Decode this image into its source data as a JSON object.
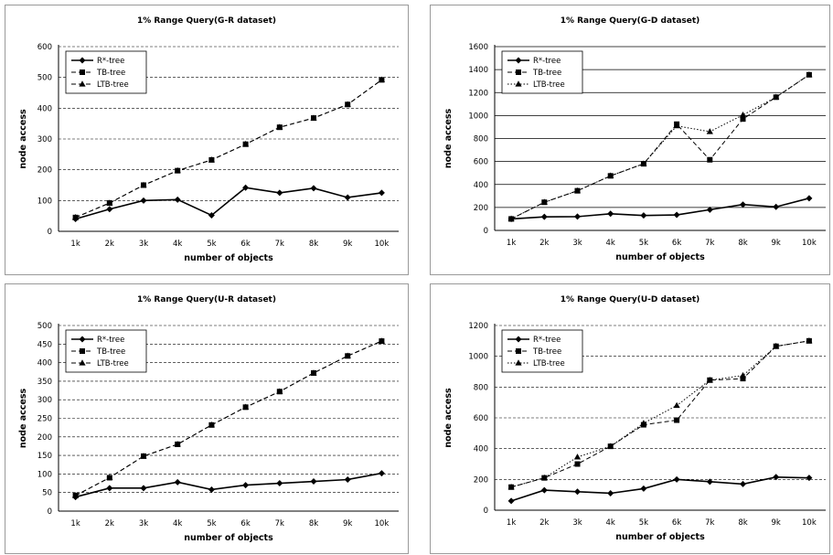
{
  "charts": [
    {
      "type": "line",
      "title": "1% Range Query(G-R dataset)",
      "xlabel": "number of objects",
      "ylabel": "node access",
      "categories": [
        "1k",
        "2k",
        "3k",
        "4k",
        "5k",
        "6k",
        "7k",
        "8k",
        "9k",
        "10k"
      ],
      "ylim": [
        0,
        600
      ],
      "yticks": [
        0,
        100,
        200,
        300,
        400,
        500,
        600
      ],
      "grid": "dashed",
      "legend_position": "top-left",
      "series": [
        {
          "name": "R*-tree",
          "marker": "diamond",
          "dash": "solid",
          "values": [
            40,
            72,
            100,
            103,
            52,
            142,
            125,
            140,
            110,
            125
          ]
        },
        {
          "name": "TB-tree",
          "marker": "square",
          "dash": "dashed",
          "values": [
            45,
            92,
            150,
            197,
            232,
            283,
            338,
            368,
            412,
            492
          ]
        },
        {
          "name": "LTB-tree",
          "marker": "triangle",
          "dash": "dashed",
          "values": [
            45,
            92,
            150,
            197,
            232,
            283,
            338,
            368,
            412,
            492
          ]
        }
      ]
    },
    {
      "type": "line",
      "title": "1% Range Query(G-D dataset)",
      "xlabel": "number of objects",
      "ylabel": "node access",
      "categories": [
        "1k",
        "2k",
        "3k",
        "4k",
        "5k",
        "6k",
        "7k",
        "8k",
        "9k",
        "10k"
      ],
      "ylim": [
        0,
        1600
      ],
      "yticks": [
        0,
        200,
        400,
        600,
        800,
        1000,
        1200,
        1400,
        1600
      ],
      "grid": "solid",
      "legend_position": "top-left",
      "series": [
        {
          "name": "R*-tree",
          "marker": "diamond",
          "dash": "solid",
          "values": [
            100,
            118,
            120,
            145,
            130,
            135,
            180,
            225,
            205,
            280
          ]
        },
        {
          "name": "TB-tree",
          "marker": "square",
          "dash": "dashed",
          "values": [
            100,
            245,
            345,
            475,
            580,
            925,
            615,
            970,
            1160,
            1355
          ]
        },
        {
          "name": "LTB-tree",
          "marker": "triangle",
          "dash": "dotted",
          "values": [
            100,
            245,
            345,
            475,
            580,
            910,
            860,
            1005,
            1160,
            1355
          ]
        }
      ]
    },
    {
      "type": "line",
      "title": "1% Range Query(U-R dataset)",
      "xlabel": "number of objects",
      "ylabel": "node access",
      "categories": [
        "1k",
        "2k",
        "3k",
        "4k",
        "5k",
        "6k",
        "7k",
        "8k",
        "9k",
        "10k"
      ],
      "ylim": [
        0,
        500
      ],
      "yticks": [
        0,
        50,
        100,
        150,
        200,
        250,
        300,
        350,
        400,
        450,
        500
      ],
      "grid": "dashed",
      "legend_position": "top-left",
      "series": [
        {
          "name": "R*-tree",
          "marker": "diamond",
          "dash": "solid",
          "values": [
            38,
            62,
            62,
            78,
            58,
            70,
            75,
            80,
            85,
            102
          ]
        },
        {
          "name": "TB-tree",
          "marker": "square",
          "dash": "dashed",
          "values": [
            42,
            90,
            148,
            180,
            232,
            280,
            322,
            372,
            418,
            458
          ]
        },
        {
          "name": "LTB-tree",
          "marker": "triangle",
          "dash": "dashed",
          "values": [
            42,
            90,
            148,
            180,
            232,
            280,
            322,
            372,
            418,
            458
          ]
        }
      ]
    },
    {
      "type": "line",
      "title": "1% Range Query(U-D dataset)",
      "xlabel": "number of objects",
      "ylabel": "node access",
      "categories": [
        "1k",
        "2k",
        "3k",
        "4k",
        "5k",
        "6k",
        "7k",
        "8k",
        "9k",
        "10k"
      ],
      "ylim": [
        0,
        1200
      ],
      "yticks": [
        0,
        200,
        400,
        600,
        800,
        1000,
        1200
      ],
      "grid": "dashed",
      "legend_position": "top-left",
      "series": [
        {
          "name": "R*-tree",
          "marker": "diamond",
          "dash": "solid",
          "values": [
            60,
            130,
            120,
            110,
            140,
            200,
            185,
            170,
            215,
            210
          ]
        },
        {
          "name": "TB-tree",
          "marker": "square",
          "dash": "dashed",
          "values": [
            150,
            210,
            300,
            415,
            555,
            585,
            845,
            855,
            1065,
            1100
          ]
        },
        {
          "name": "LTB-tree",
          "marker": "triangle",
          "dash": "dotted",
          "values": [
            150,
            210,
            345,
            415,
            565,
            680,
            845,
            875,
            1065,
            1100
          ]
        }
      ]
    }
  ],
  "chart_data": [
    {
      "type": "line",
      "title": "1% Range Query(G-R dataset)",
      "xlabel": "number of objects",
      "ylabel": "node access",
      "categories": [
        "1k",
        "2k",
        "3k",
        "4k",
        "5k",
        "6k",
        "7k",
        "8k",
        "9k",
        "10k"
      ],
      "ylim": [
        0,
        600
      ],
      "series": [
        {
          "name": "R*-tree",
          "values": [
            40,
            72,
            100,
            103,
            52,
            142,
            125,
            140,
            110,
            125
          ]
        },
        {
          "name": "TB-tree",
          "values": [
            45,
            92,
            150,
            197,
            232,
            283,
            338,
            368,
            412,
            492
          ]
        },
        {
          "name": "LTB-tree",
          "values": [
            45,
            92,
            150,
            197,
            232,
            283,
            338,
            368,
            412,
            492
          ]
        }
      ]
    },
    {
      "type": "line",
      "title": "1% Range Query(G-D dataset)",
      "xlabel": "number of objects",
      "ylabel": "node access",
      "categories": [
        "1k",
        "2k",
        "3k",
        "4k",
        "5k",
        "6k",
        "7k",
        "8k",
        "9k",
        "10k"
      ],
      "ylim": [
        0,
        1600
      ],
      "series": [
        {
          "name": "R*-tree",
          "values": [
            100,
            118,
            120,
            145,
            130,
            135,
            180,
            225,
            205,
            280
          ]
        },
        {
          "name": "TB-tree",
          "values": [
            100,
            245,
            345,
            475,
            580,
            925,
            615,
            970,
            1160,
            1355
          ]
        },
        {
          "name": "LTB-tree",
          "values": [
            100,
            245,
            345,
            475,
            580,
            910,
            860,
            1005,
            1160,
            1355
          ]
        }
      ]
    },
    {
      "type": "line",
      "title": "1% Range Query(U-R dataset)",
      "xlabel": "number of objects",
      "ylabel": "node access",
      "categories": [
        "1k",
        "2k",
        "3k",
        "4k",
        "5k",
        "6k",
        "7k",
        "8k",
        "9k",
        "10k"
      ],
      "ylim": [
        0,
        500
      ],
      "series": [
        {
          "name": "R*-tree",
          "values": [
            38,
            62,
            62,
            78,
            58,
            70,
            75,
            80,
            85,
            102
          ]
        },
        {
          "name": "TB-tree",
          "values": [
            42,
            90,
            148,
            180,
            232,
            280,
            322,
            372,
            418,
            458
          ]
        },
        {
          "name": "LTB-tree",
          "values": [
            42,
            90,
            148,
            180,
            232,
            280,
            322,
            372,
            418,
            458
          ]
        }
      ]
    },
    {
      "type": "line",
      "title": "1% Range Query(U-D dataset)",
      "xlabel": "number of objects",
      "ylabel": "node access",
      "categories": [
        "1k",
        "2k",
        "3k",
        "4k",
        "5k",
        "6k",
        "7k",
        "8k",
        "9k",
        "10k"
      ],
      "ylim": [
        0,
        1200
      ],
      "series": [
        {
          "name": "R*-tree",
          "values": [
            60,
            130,
            120,
            110,
            140,
            200,
            185,
            170,
            215,
            210
          ]
        },
        {
          "name": "TB-tree",
          "values": [
            150,
            210,
            300,
            415,
            555,
            585,
            845,
            855,
            1065,
            1100
          ]
        },
        {
          "name": "LTB-tree",
          "values": [
            150,
            210,
            345,
            415,
            565,
            680,
            845,
            875,
            1065,
            1100
          ]
        }
      ]
    }
  ]
}
